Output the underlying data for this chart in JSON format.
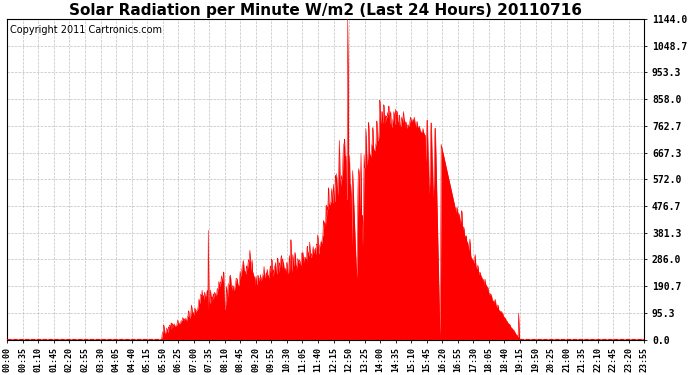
{
  "title": "Solar Radiation per Minute W/m2 (Last 24 Hours) 20110716",
  "copyright": "Copyright 2011 Cartronics.com",
  "yticks": [
    0.0,
    95.3,
    190.7,
    286.0,
    381.3,
    476.7,
    572.0,
    667.3,
    762.7,
    858.0,
    953.3,
    1048.7,
    1144.0
  ],
  "ytick_labels": [
    "0.0",
    "95.3",
    "190.7",
    "286.0",
    "381.3",
    "476.7",
    "572.0",
    "667.3",
    "762.7",
    "858.0",
    "953.3",
    "1048.7",
    "1144.0"
  ],
  "ymin": 0.0,
  "ymax": 1144.0,
  "fill_color": "#FF0000",
  "grid_color": "#C0C0C0",
  "background_color": "#FFFFFF",
  "title_fontsize": 11,
  "copyright_fontsize": 7,
  "xtick_labels": [
    "00:00",
    "00:35",
    "01:10",
    "01:45",
    "02:20",
    "02:55",
    "03:30",
    "04:05",
    "04:40",
    "05:15",
    "05:50",
    "06:25",
    "07:00",
    "07:35",
    "08:10",
    "08:45",
    "09:20",
    "09:55",
    "10:30",
    "11:05",
    "11:40",
    "12:15",
    "12:50",
    "13:25",
    "14:00",
    "14:35",
    "15:10",
    "15:45",
    "16:20",
    "16:55",
    "17:30",
    "18:05",
    "18:40",
    "19:15",
    "19:50",
    "20:25",
    "21:00",
    "21:35",
    "22:10",
    "22:45",
    "23:20",
    "23:55"
  ]
}
